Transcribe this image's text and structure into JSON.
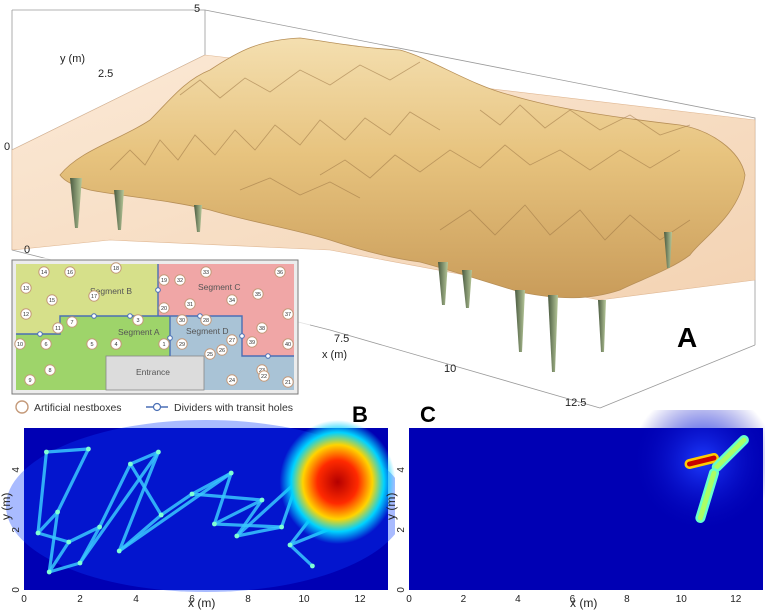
{
  "panel_a": {
    "label": "A",
    "y_axis_title": "y (m)",
    "x_axis_title": "x (m)",
    "z_ticks": [
      "5",
      "0"
    ],
    "y_ticks": [
      "2.5",
      "0"
    ],
    "x_ticks": [
      "7.5",
      "10",
      "12.5"
    ],
    "inset": {
      "segments": [
        "Segment B",
        "Segment C",
        "Segment A",
        "Segment D"
      ],
      "entrance_label": "Entrance",
      "legend_nestbox": "Artificial nestboxes",
      "legend_divider": "Dividers with transit holes",
      "colors": {
        "segment_a": "#9ed46a",
        "segment_b": "#d6e08a",
        "segment_c": "#f0a6a6",
        "segment_d": "#a9c3d6",
        "entrance": "#dcdcdc",
        "divider": "#4a6fb5"
      },
      "nestboxes": [
        "14",
        "16",
        "18",
        "19",
        "32",
        "33",
        "36",
        "13",
        "15",
        "17",
        "20",
        "31",
        "35",
        "12",
        "34",
        "37",
        "11",
        "7",
        "3",
        "30",
        "28",
        "38",
        "10",
        "6",
        "2",
        "1",
        "29",
        "27",
        "26",
        "5",
        "4",
        "25",
        "39",
        "40",
        "8",
        "24",
        "23",
        "9",
        "22",
        "21"
      ]
    }
  },
  "panel_b": {
    "label": "B",
    "xlabel": "x (m)",
    "ylabel": "y (m)",
    "x_ticks": [
      "0",
      "2",
      "4",
      "6",
      "8",
      "10",
      "12"
    ],
    "y_ticks": [
      "0",
      "2",
      "4"
    ],
    "colormap": [
      "#00008b",
      "#0050ff",
      "#00c8ff",
      "#7fff7f",
      "#ffd400",
      "#ff4000",
      "#b40000"
    ]
  },
  "panel_c": {
    "label": "C",
    "xlabel": "x (m)",
    "ylabel": "y (m)",
    "x_ticks": [
      "0",
      "2",
      "4",
      "6",
      "8",
      "10",
      "12"
    ],
    "y_ticks": [
      "0",
      "2",
      "4"
    ]
  },
  "chart_data": [
    {
      "type": "heatmap",
      "title": "",
      "panel": "B",
      "xlabel": "x (m)",
      "ylabel": "y (m)",
      "xlim": [
        0,
        13
      ],
      "ylim": [
        0,
        5.4
      ],
      "trajectory": [
        {
          "x": 0.8,
          "y": 4.6
        },
        {
          "x": 2.3,
          "y": 4.7
        },
        {
          "x": 1.2,
          "y": 2.6
        },
        {
          "x": 0.5,
          "y": 1.9
        },
        {
          "x": 1.6,
          "y": 1.6
        },
        {
          "x": 0.9,
          "y": 0.6
        },
        {
          "x": 2.0,
          "y": 0.9
        },
        {
          "x": 2.7,
          "y": 2.1
        },
        {
          "x": 3.8,
          "y": 4.2
        },
        {
          "x": 4.8,
          "y": 4.6
        },
        {
          "x": 3.4,
          "y": 1.3
        },
        {
          "x": 4.9,
          "y": 2.5
        },
        {
          "x": 6.0,
          "y": 3.2
        },
        {
          "x": 7.4,
          "y": 3.9
        },
        {
          "x": 6.8,
          "y": 2.2
        },
        {
          "x": 8.5,
          "y": 3.0
        },
        {
          "x": 7.6,
          "y": 1.8
        },
        {
          "x": 9.2,
          "y": 2.1
        },
        {
          "x": 10.2,
          "y": 4.8
        },
        {
          "x": 11.5,
          "y": 5.1
        },
        {
          "x": 12.3,
          "y": 3.4
        },
        {
          "x": 10.8,
          "y": 2.5
        },
        {
          "x": 11.9,
          "y": 2.4
        },
        {
          "x": 10.4,
          "y": 3.9
        },
        {
          "x": 12.0,
          "y": 4.5
        },
        {
          "x": 9.5,
          "y": 1.5
        },
        {
          "x": 10.3,
          "y": 0.8
        }
      ],
      "hotspot": {
        "x": 11.2,
        "y": 3.6
      }
    },
    {
      "type": "heatmap",
      "title": "",
      "panel": "C",
      "xlabel": "x (m)",
      "ylabel": "y (m)",
      "xlim": [
        0,
        13
      ],
      "ylim": [
        0,
        5.4
      ],
      "segments": [
        {
          "x1": 10.3,
          "y1": 4.2,
          "x2": 11.2,
          "y2": 4.4
        },
        {
          "x1": 11.3,
          "y1": 4.1,
          "x2": 12.3,
          "y2": 5.0
        },
        {
          "x1": 11.2,
          "y1": 3.9,
          "x2": 10.7,
          "y2": 2.4
        }
      ],
      "hotspot": {
        "x": 10.8,
        "y": 4.3
      }
    }
  ]
}
